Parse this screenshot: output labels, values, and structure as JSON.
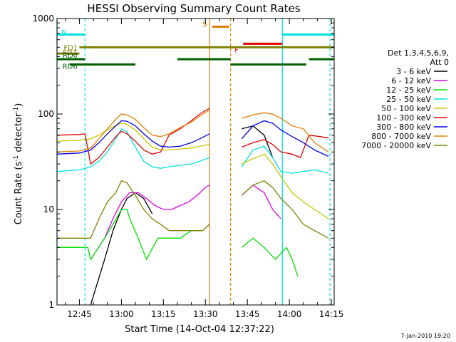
{
  "chart_data": {
    "type": "line",
    "title": "HESSI Observing Summary Count Rates",
    "xlabel": "Start Time (14-Oct-04 12:37:22)",
    "ylabel": "Count Rate (s-1 detector-1)",
    "ylabel_parts": {
      "main": "Count Rate (s",
      "sup1": "-1",
      "mid": " detector",
      "sup2": "-1",
      "end": ")"
    },
    "y_scale": "log",
    "ylim": [
      1,
      1000
    ],
    "xlim_minutes": [
      0,
      99
    ],
    "x_tick_labels": [
      "12:45",
      "13:00",
      "13:15",
      "13:30",
      "13:45",
      "14:00",
      "14:15"
    ],
    "x_ticks_minutes": [
      8,
      23,
      38,
      53,
      68,
      83,
      98
    ],
    "y_tick_labels": [
      "1",
      "10",
      "100",
      "1000"
    ],
    "y_ticks": [
      1,
      10,
      100,
      1000
    ],
    "legend_header": [
      "Det 1,3,4,5,6,9,",
      "Att 0"
    ],
    "legend_entries": [
      {
        "label": "3 - 6 keV",
        "color": "#000000"
      },
      {
        "label": "6 - 12 keV",
        "color": "#e000e0"
      },
      {
        "label": "12 - 25 keV",
        "color": "#00e000"
      },
      {
        "label": "25 - 50 keV",
        "color": "#00e0e0"
      },
      {
        "label": "50 - 100 keV",
        "color": "#c8c800"
      },
      {
        "label": "100 - 300 keV",
        "color": "#e00000"
      },
      {
        "label": "300 - 800 keV",
        "color": "#0000e0"
      },
      {
        "label": "800 - 7000 keV",
        "color": "#e08000"
      },
      {
        "label": "7000 - 20000 keV",
        "color": "#808000"
      }
    ],
    "series": [
      {
        "name": "3 - 6 keV",
        "color": "#000000",
        "x": [
          12,
          17,
          20,
          23,
          25,
          28,
          31,
          34,
          54.5
        ],
        "y": [
          1,
          3,
          6,
          10,
          13,
          15,
          13,
          9,
          null
        ]
      },
      {
        "name": "6 - 12 keV",
        "color": "#e000e0",
        "x": [
          12,
          17,
          20,
          23,
          26,
          29,
          32,
          35,
          38,
          41,
          44,
          47,
          50,
          53,
          54.5
        ],
        "y": [
          3,
          5,
          8,
          12,
          15,
          15,
          13,
          11,
          10,
          10,
          11,
          12,
          14,
          17,
          18
        ]
      },
      {
        "name": "12 - 25 keV",
        "color": "#00e000",
        "x": [
          0,
          8,
          11,
          12,
          17,
          20,
          23,
          25,
          26,
          29,
          32,
          36,
          40,
          44,
          48,
          52,
          54.5
        ],
        "y": [
          4,
          4,
          4,
          3,
          5,
          7,
          10,
          10,
          8,
          5,
          3,
          5,
          5,
          5,
          6,
          6,
          7
        ]
      },
      {
        "name": "25 - 50 keV",
        "color": "#00e0e0",
        "x": [
          0,
          8,
          12,
          15,
          18,
          21,
          23,
          25,
          28,
          31,
          34,
          37,
          40,
          44,
          48,
          51,
          54.5
        ],
        "y": [
          25,
          26,
          28,
          32,
          40,
          55,
          70,
          65,
          45,
          32,
          28,
          27,
          28,
          29,
          30,
          32,
          35
        ]
      },
      {
        "name": "50 - 100 keV",
        "color": "#c8c800",
        "x": [
          0,
          8,
          12,
          15,
          18,
          21,
          23,
          25,
          28,
          31,
          34,
          37,
          40,
          44,
          48,
          51,
          54.5
        ],
        "y": [
          52,
          53,
          55,
          60,
          68,
          76,
          80,
          78,
          68,
          55,
          45,
          42,
          42,
          43,
          44,
          46,
          48
        ]
      },
      {
        "name": "100 - 300 keV",
        "color": "#e00000",
        "x": [
          0,
          8,
          10,
          12,
          15,
          18,
          21,
          23,
          25,
          28,
          31,
          34,
          37,
          40,
          44,
          48,
          51,
          54.5
        ],
        "y": [
          60,
          61,
          62,
          30,
          35,
          45,
          58,
          66,
          62,
          52,
          42,
          38,
          40,
          60,
          70,
          85,
          100,
          115
        ]
      },
      {
        "name": "300 - 800 keV",
        "color": "#0000e0",
        "x": [
          0,
          8,
          12,
          15,
          18,
          21,
          23,
          25,
          28,
          31,
          34,
          37,
          40,
          44,
          48,
          51,
          54.5
        ],
        "y": [
          38,
          39,
          42,
          50,
          62,
          75,
          85,
          84,
          75,
          62,
          52,
          46,
          45,
          46,
          50,
          55,
          62
        ]
      },
      {
        "name": "800 - 7000 keV",
        "color": "#e08000",
        "x": [
          0,
          8,
          12,
          15,
          18,
          21,
          23,
          25,
          28,
          31,
          34,
          37,
          40,
          44,
          48,
          51,
          54.5
        ],
        "y": [
          40,
          41,
          44,
          55,
          70,
          88,
          100,
          98,
          88,
          72,
          60,
          58,
          62,
          72,
          82,
          95,
          110
        ]
      },
      {
        "name": "7000 - 20000 keV",
        "color": "#808000",
        "x": [
          0,
          8,
          12,
          15,
          18,
          21,
          23,
          25,
          28,
          31,
          34,
          37,
          40,
          44,
          48,
          52,
          54.5
        ],
        "y": [
          5,
          5,
          5,
          8,
          12,
          15,
          20,
          19,
          14,
          10,
          8,
          7,
          6,
          6,
          6,
          6,
          7
        ]
      }
    ],
    "series_after_gap": [
      {
        "name": "3 - 6 keV",
        "color": "#000000",
        "x": [
          66,
          70,
          74,
          77
        ],
        "y": [
          70,
          75,
          60,
          35
        ]
      },
      {
        "name": "6 - 12 keV",
        "color": "#e000e0",
        "x": [
          66,
          70,
          74,
          77,
          80
        ],
        "y": [
          14,
          18,
          15,
          10,
          8
        ]
      },
      {
        "name": "12 - 25 keV",
        "color": "#00e000",
        "x": [
          66,
          70,
          74,
          78,
          82,
          84,
          86
        ],
        "y": [
          4,
          5,
          4,
          3,
          4,
          3,
          2
        ]
      },
      {
        "name": "25 - 50 keV",
        "color": "#00e0e0",
        "x": [
          66,
          70,
          74,
          77,
          80,
          84,
          88,
          92,
          97
        ],
        "y": [
          28,
          42,
          46,
          35,
          25,
          24,
          25,
          26,
          24
        ]
      },
      {
        "name": "50 - 100 keV",
        "color": "#c8c800",
        "x": [
          66,
          70,
          74,
          77,
          80,
          84,
          88,
          92,
          97
        ],
        "y": [
          30,
          34,
          38,
          30,
          22,
          15,
          12,
          10,
          8
        ]
      },
      {
        "name": "100 - 300 keV",
        "color": "#e00000",
        "x": [
          66,
          70,
          74,
          77,
          80,
          84,
          87,
          90,
          94,
          97
        ],
        "y": [
          45,
          50,
          54,
          48,
          40,
          38,
          35,
          60,
          58,
          56
        ]
      },
      {
        "name": "300 - 800 keV",
        "color": "#0000e0",
        "x": [
          66,
          70,
          74,
          77,
          80,
          84,
          88,
          92,
          97
        ],
        "y": [
          55,
          75,
          85,
          80,
          68,
          58,
          50,
          42,
          36
        ]
      },
      {
        "name": "800 - 7000 keV",
        "color": "#e08000",
        "x": [
          66,
          70,
          74,
          77,
          80,
          84,
          88,
          92,
          97
        ],
        "y": [
          90,
          98,
          103,
          100,
          90,
          75,
          70,
          50,
          40
        ]
      },
      {
        "name": "7000 - 20000 keV",
        "color": "#808000",
        "x": [
          66,
          70,
          74,
          77,
          80,
          84,
          88,
          92,
          97
        ],
        "y": [
          14,
          18,
          20,
          17,
          13,
          10,
          7,
          6,
          5
        ]
      }
    ],
    "vertical_markers": [
      {
        "x_minutes": 0,
        "color": "#00e0e0",
        "style": "solid"
      },
      {
        "x_minutes": 10,
        "color": "#00e0e0",
        "style": "dashed"
      },
      {
        "x_minutes": 54.5,
        "color": "#e08000",
        "style": "solid"
      },
      {
        "x_minutes": 62,
        "color": "#e08000",
        "style": "dashed"
      },
      {
        "x_minutes": 80.5,
        "color": "#00e0e0",
        "style": "solid"
      },
      {
        "x_minutes": 97.5,
        "color": "#00e0e0",
        "style": "dashed"
      }
    ],
    "flag_bars": [
      {
        "label": "N",
        "color": "#00e0e0",
        "y": 680,
        "segments": [
          [
            0,
            10
          ],
          [
            80.5,
            99
          ]
        ]
      },
      {
        "label": "S",
        "color": "#e08000",
        "y": 820,
        "segments": [
          [
            55.5,
            61.5
          ]
        ]
      },
      {
        "label": "F",
        "color": "#e00000",
        "y": 545,
        "segments": [
          [
            66.5,
            80.5
          ]
        ]
      },
      {
        "label": "FD1",
        "color": "#808000",
        "y": 500,
        "segments": [
          [
            8,
            99
          ]
        ]
      },
      {
        "label": "FD2",
        "color": "#808000",
        "y": 430,
        "segments": [
          [
            0,
            8
          ]
        ]
      },
      {
        "label": "RD0",
        "color": "#006000",
        "y": 375,
        "segments": [
          [
            0,
            10
          ],
          [
            43,
            62
          ],
          [
            90,
            99
          ]
        ]
      },
      {
        "label": "RD6",
        "color": "#006000",
        "y": 330,
        "segments": [
          [
            4.5,
            28
          ],
          [
            62,
            89
          ]
        ]
      }
    ],
    "footer_timestamp": "7-Jan-2010 19:20",
    "colors": {
      "axis": "#000000",
      "background": "#ffffff"
    }
  }
}
